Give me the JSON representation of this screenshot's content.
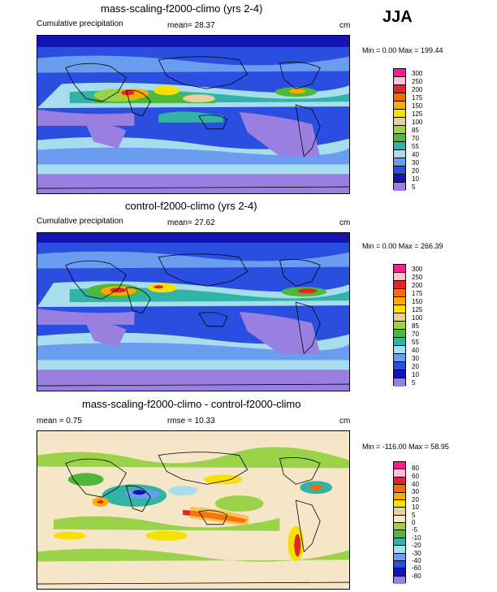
{
  "season": "JJA",
  "panels": [
    {
      "title": "mass-scaling-f2000-climo (yrs 2-4)",
      "left_label": "Cumulative precipitation",
      "center_label": "mean=  28.37",
      "right_label": "cm",
      "minmax": "Min =   0.00 Max = 199.44",
      "colorbar_labels": [
        "300",
        "250",
        "200",
        "175",
        "150",
        "125",
        "100",
        "85",
        "70",
        "55",
        "40",
        "30",
        "20",
        "10",
        "5"
      ],
      "colorbar_colors": [
        "#ff1c95",
        "#ffc1d8",
        "#e0262a",
        "#ff6a00",
        "#ffaa00",
        "#f5e000",
        "#e8cfa0",
        "#9ad24a",
        "#4db83a",
        "#31b3a5",
        "#a8ddf0",
        "#6a9df0",
        "#2a4fe0",
        "#1414b4",
        "#9980e0"
      ]
    },
    {
      "title": "control-f2000-climo (yrs 2-4)",
      "left_label": "Cumulative precipitation",
      "center_label": "mean=  27.62",
      "right_label": "cm",
      "minmax": "Min =   0.00 Max = 266.39",
      "colorbar_labels": [
        "300",
        "250",
        "200",
        "175",
        "150",
        "125",
        "100",
        "85",
        "70",
        "55",
        "40",
        "30",
        "20",
        "10",
        "5"
      ],
      "colorbar_colors": [
        "#ff1c95",
        "#ffc1d8",
        "#e0262a",
        "#ff6a00",
        "#ffaa00",
        "#f5e000",
        "#e8cfa0",
        "#9ad24a",
        "#4db83a",
        "#31b3a5",
        "#a8ddf0",
        "#6a9df0",
        "#2a4fe0",
        "#1414b4",
        "#9980e0"
      ]
    },
    {
      "title": "mass-scaling-f2000-climo - control-f2000-climo",
      "left_label": "mean =   0.75",
      "center_label": "rmse =  10.33",
      "right_label": "cm",
      "minmax": "Min = -116.00 Max =  58.95",
      "colorbar_labels": [
        "80",
        "60",
        "40",
        "30",
        "20",
        "10",
        "5",
        "0",
        "-5",
        "-10",
        "-20",
        "-30",
        "-40",
        "-60",
        "-80"
      ],
      "colorbar_colors": [
        "#ff1c95",
        "#ffc1d8",
        "#e0262a",
        "#ff6a00",
        "#ffaa00",
        "#f5e000",
        "#e8cfa0",
        "#f5e6c8",
        "#9ad24a",
        "#4db83a",
        "#31b3a5",
        "#a8ddf0",
        "#6a9df0",
        "#2a4fe0",
        "#1414b4",
        "#9980e0"
      ]
    }
  ]
}
